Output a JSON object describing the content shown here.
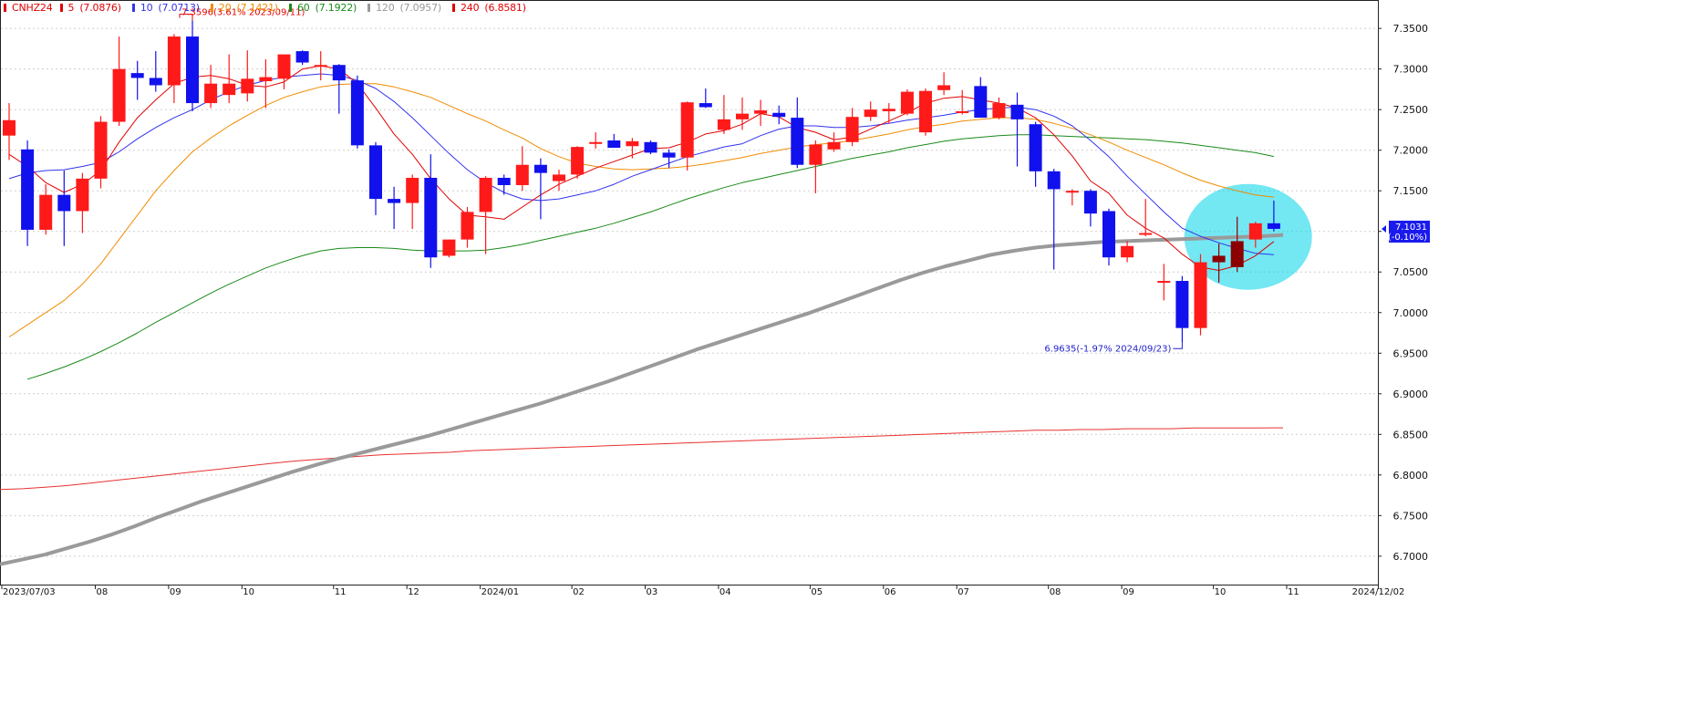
{
  "chart_data": {
    "type": "candlestick",
    "symbol": "CNHZ24",
    "legend": [
      {
        "label": "CNHZ24",
        "value": "",
        "color": "#e00000"
      },
      {
        "label": "5",
        "value": "(7.0876)",
        "color": "#e00000"
      },
      {
        "label": "10",
        "value": "(7.0713)",
        "color": "#3333ee"
      },
      {
        "label": "20",
        "value": "(7.1421)",
        "color": "#f08c00"
      },
      {
        "label": "60",
        "value": "(7.1922)",
        "color": "#1a8a1a"
      },
      {
        "label": "120",
        "value": "(7.0957)",
        "color": "#999999"
      },
      {
        "label": "240",
        "value": "(6.8581)",
        "color": "#e00000"
      }
    ],
    "y_ticks": [
      "7.3500",
      "7.3000",
      "7.2500",
      "7.2000",
      "7.1500",
      "7.1000",
      "7.0500",
      "7.0000",
      "6.9500",
      "6.9000",
      "6.8500",
      "6.8000",
      "6.7500",
      "6.7000"
    ],
    "ylim": [
      6.665,
      7.385
    ],
    "x_labels": [
      "2023/07/03",
      "08",
      "09",
      "10",
      "11",
      "12",
      "2024/01",
      "02",
      "03",
      "04",
      "05",
      "06",
      "07",
      "08",
      "09",
      "10",
      "11",
      "2024/12/02"
    ],
    "x_label_positions": [
      0,
      5,
      9,
      13,
      18,
      22,
      26,
      31,
      35,
      39,
      44,
      48,
      52,
      57,
      61,
      66,
      70,
      75
    ],
    "n_slots": 75,
    "candles": [
      {
        "o": 7.218,
        "h": 7.258,
        "l": 7.188,
        "c": 7.237
      },
      {
        "o": 7.201,
        "h": 7.212,
        "l": 7.082,
        "c": 7.102
      },
      {
        "o": 7.102,
        "h": 7.158,
        "l": 7.096,
        "c": 7.145
      },
      {
        "o": 7.145,
        "h": 7.175,
        "l": 7.082,
        "c": 7.125
      },
      {
        "o": 7.125,
        "h": 7.172,
        "l": 7.098,
        "c": 7.165
      },
      {
        "o": 7.165,
        "h": 7.242,
        "l": 7.153,
        "c": 7.235
      },
      {
        "o": 7.235,
        "h": 7.34,
        "l": 7.23,
        "c": 7.3
      },
      {
        "o": 7.295,
        "h": 7.31,
        "l": 7.262,
        "c": 7.289
      },
      {
        "o": 7.289,
        "h": 7.322,
        "l": 7.272,
        "c": 7.28
      },
      {
        "o": 7.28,
        "h": 7.343,
        "l": 7.258,
        "c": 7.34
      },
      {
        "o": 7.34,
        "h": 7.3596,
        "l": 7.248,
        "c": 7.258
      },
      {
        "o": 7.258,
        "h": 7.305,
        "l": 7.252,
        "c": 7.282
      },
      {
        "o": 7.268,
        "h": 7.318,
        "l": 7.258,
        "c": 7.282
      },
      {
        "o": 7.27,
        "h": 7.323,
        "l": 7.26,
        "c": 7.288
      },
      {
        "o": 7.285,
        "h": 7.312,
        "l": 7.252,
        "c": 7.29
      },
      {
        "o": 7.288,
        "h": 7.316,
        "l": 7.275,
        "c": 7.318
      },
      {
        "o": 7.322,
        "h": 7.323,
        "l": 7.305,
        "c": 7.308
      },
      {
        "o": 7.304,
        "h": 7.322,
        "l": 7.286,
        "c": 7.305
      },
      {
        "o": 7.305,
        "h": 7.306,
        "l": 7.245,
        "c": 7.286
      },
      {
        "o": 7.286,
        "h": 7.292,
        "l": 7.202,
        "c": 7.206
      },
      {
        "o": 7.206,
        "h": 7.21,
        "l": 7.12,
        "c": 7.14
      },
      {
        "o": 7.14,
        "h": 7.155,
        "l": 7.103,
        "c": 7.135
      },
      {
        "o": 7.135,
        "h": 7.17,
        "l": 7.103,
        "c": 7.166
      },
      {
        "o": 7.166,
        "h": 7.195,
        "l": 7.055,
        "c": 7.068
      },
      {
        "o": 7.07,
        "h": 7.09,
        "l": 7.068,
        "c": 7.09
      },
      {
        "o": 7.09,
        "h": 7.13,
        "l": 7.08,
        "c": 7.124
      },
      {
        "o": 7.124,
        "h": 7.168,
        "l": 7.072,
        "c": 7.166
      },
      {
        "o": 7.166,
        "h": 7.17,
        "l": 7.145,
        "c": 7.157
      },
      {
        "o": 7.157,
        "h": 7.205,
        "l": 7.15,
        "c": 7.182
      },
      {
        "o": 7.182,
        "h": 7.19,
        "l": 7.115,
        "c": 7.172
      },
      {
        "o": 7.162,
        "h": 7.176,
        "l": 7.15,
        "c": 7.17
      },
      {
        "o": 7.17,
        "h": 7.205,
        "l": 7.165,
        "c": 7.204
      },
      {
        "o": 7.208,
        "h": 7.222,
        "l": 7.202,
        "c": 7.21
      },
      {
        "o": 7.212,
        "h": 7.22,
        "l": 7.203,
        "c": 7.203
      },
      {
        "o": 7.205,
        "h": 7.215,
        "l": 7.19,
        "c": 7.211
      },
      {
        "o": 7.21,
        "h": 7.212,
        "l": 7.195,
        "c": 7.197
      },
      {
        "o": 7.197,
        "h": 7.201,
        "l": 7.178,
        "c": 7.191
      },
      {
        "o": 7.191,
        "h": 7.26,
        "l": 7.175,
        "c": 7.259
      },
      {
        "o": 7.258,
        "h": 7.276,
        "l": 7.252,
        "c": 7.253
      },
      {
        "o": 7.225,
        "h": 7.268,
        "l": 7.22,
        "c": 7.238
      },
      {
        "o": 7.238,
        "h": 7.265,
        "l": 7.225,
        "c": 7.245
      },
      {
        "o": 7.245,
        "h": 7.262,
        "l": 7.23,
        "c": 7.249
      },
      {
        "o": 7.246,
        "h": 7.255,
        "l": 7.232,
        "c": 7.241
      },
      {
        "o": 7.24,
        "h": 7.265,
        "l": 7.178,
        "c": 7.182
      },
      {
        "o": 7.182,
        "h": 7.212,
        "l": 7.147,
        "c": 7.207
      },
      {
        "o": 7.201,
        "h": 7.222,
        "l": 7.198,
        "c": 7.21
      },
      {
        "o": 7.21,
        "h": 7.252,
        "l": 7.205,
        "c": 7.241
      },
      {
        "o": 7.241,
        "h": 7.26,
        "l": 7.236,
        "c": 7.25
      },
      {
        "o": 7.248,
        "h": 7.258,
        "l": 7.233,
        "c": 7.251
      },
      {
        "o": 7.245,
        "h": 7.275,
        "l": 7.243,
        "c": 7.272
      },
      {
        "o": 7.222,
        "h": 7.276,
        "l": 7.218,
        "c": 7.273
      },
      {
        "o": 7.274,
        "h": 7.296,
        "l": 7.268,
        "c": 7.28
      },
      {
        "o": 7.248,
        "h": 7.274,
        "l": 7.244,
        "c": 7.248
      },
      {
        "o": 7.279,
        "h": 7.29,
        "l": 7.245,
        "c": 7.24
      },
      {
        "o": 7.24,
        "h": 7.265,
        "l": 7.238,
        "c": 7.258
      },
      {
        "o": 7.256,
        "h": 7.271,
        "l": 7.18,
        "c": 7.238
      },
      {
        "o": 7.232,
        "h": 7.235,
        "l": 7.155,
        "c": 7.174
      },
      {
        "o": 7.174,
        "h": 7.177,
        "l": 7.053,
        "c": 7.152
      },
      {
        "o": 7.15,
        "h": 7.152,
        "l": 7.132,
        "c": 7.15
      },
      {
        "o": 7.15,
        "h": 7.152,
        "l": 7.106,
        "c": 7.122
      },
      {
        "o": 7.125,
        "h": 7.128,
        "l": 7.058,
        "c": 7.068
      },
      {
        "o": 7.068,
        "h": 7.088,
        "l": 7.062,
        "c": 7.082
      },
      {
        "o": 7.096,
        "h": 7.14,
        "l": 7.094,
        "c": 7.098
      },
      {
        "o": 7.038,
        "h": 7.06,
        "l": 7.015,
        "c": 7.039
      },
      {
        "o": 7.039,
        "h": 7.045,
        "l": 6.9635,
        "c": 6.981
      },
      {
        "o": 6.981,
        "h": 7.072,
        "l": 6.972,
        "c": 7.062
      },
      {
        "o": 7.062,
        "h": 7.085,
        "l": 7.037,
        "c": 7.07
      },
      {
        "o": 7.056,
        "h": 7.118,
        "l": 7.05,
        "c": 7.088
      },
      {
        "o": 7.09,
        "h": 7.112,
        "l": 7.08,
        "c": 7.11
      },
      {
        "o": 7.11,
        "h": 7.138,
        "l": 7.1,
        "c": 7.1031
      }
    ],
    "ma5": [
      7.195,
      7.18,
      7.16,
      7.148,
      7.158,
      7.175,
      7.21,
      7.24,
      7.262,
      7.282,
      7.29,
      7.292,
      7.288,
      7.28,
      7.278,
      7.284,
      7.3,
      7.304,
      7.3,
      7.282,
      7.252,
      7.22,
      7.195,
      7.165,
      7.14,
      7.12,
      7.118,
      7.115,
      7.13,
      7.145,
      7.158,
      7.168,
      7.178,
      7.186,
      7.194,
      7.202,
      7.203,
      7.21,
      7.22,
      7.224,
      7.232,
      7.245,
      7.241,
      7.228,
      7.222,
      7.213,
      7.216,
      7.226,
      7.236,
      7.246,
      7.258,
      7.264,
      7.266,
      7.262,
      7.258,
      7.252,
      7.24,
      7.219,
      7.193,
      7.162,
      7.147,
      7.12,
      7.104,
      7.092,
      7.072,
      7.056,
      7.052,
      7.058,
      7.07,
      7.0876
    ],
    "ma10": [
      7.165,
      7.172,
      7.175,
      7.176,
      7.18,
      7.185,
      7.198,
      7.214,
      7.228,
      7.24,
      7.25,
      7.262,
      7.272,
      7.28,
      7.286,
      7.29,
      7.292,
      7.294,
      7.292,
      7.286,
      7.276,
      7.26,
      7.24,
      7.218,
      7.196,
      7.176,
      7.16,
      7.148,
      7.14,
      7.138,
      7.14,
      7.145,
      7.15,
      7.158,
      7.168,
      7.176,
      7.184,
      7.192,
      7.198,
      7.204,
      7.208,
      7.218,
      7.226,
      7.23,
      7.23,
      7.228,
      7.228,
      7.23,
      7.233,
      7.237,
      7.24,
      7.243,
      7.247,
      7.25,
      7.252,
      7.253,
      7.25,
      7.242,
      7.23,
      7.212,
      7.192,
      7.168,
      7.146,
      7.124,
      7.104,
      7.094,
      7.086,
      7.079,
      7.073,
      7.0713
    ],
    "ma20": [
      6.97,
      6.985,
      7.0,
      7.015,
      7.035,
      7.06,
      7.09,
      7.12,
      7.15,
      7.175,
      7.198,
      7.215,
      7.23,
      7.243,
      7.255,
      7.265,
      7.272,
      7.278,
      7.281,
      7.282,
      7.282,
      7.278,
      7.272,
      7.265,
      7.255,
      7.245,
      7.236,
      7.225,
      7.215,
      7.202,
      7.192,
      7.184,
      7.18,
      7.177,
      7.176,
      7.177,
      7.178,
      7.18,
      7.183,
      7.187,
      7.191,
      7.196,
      7.2,
      7.204,
      7.207,
      7.209,
      7.212,
      7.216,
      7.22,
      7.225,
      7.229,
      7.232,
      7.236,
      7.238,
      7.24,
      7.24,
      7.238,
      7.233,
      7.227,
      7.219,
      7.21,
      7.2,
      7.191,
      7.182,
      7.172,
      7.163,
      7.156,
      7.15,
      7.145,
      7.1421
    ],
    "ma60": [
      6.918,
      6.925,
      6.933,
      6.942,
      6.952,
      6.963,
      6.975,
      6.988,
      7.0,
      7.012,
      7.024,
      7.035,
      7.045,
      7.055,
      7.063,
      7.07,
      7.076,
      7.079,
      7.08,
      7.08,
      7.079,
      7.077,
      7.076,
      7.076,
      7.076,
      7.077,
      7.08,
      7.084,
      7.089,
      7.094,
      7.099,
      7.104,
      7.11,
      7.117,
      7.124,
      7.132,
      7.14,
      7.147,
      7.154,
      7.16,
      7.165,
      7.17,
      7.175,
      7.18,
      7.185,
      7.19,
      7.194,
      7.198,
      7.203,
      7.207,
      7.211,
      7.214,
      7.216,
      7.218,
      7.219,
      7.219,
      7.218,
      7.217,
      7.216,
      7.215,
      7.214,
      7.213,
      7.211,
      7.209,
      7.206,
      7.203,
      7.2,
      7.197,
      7.1922
    ],
    "ma120": [
      6.69,
      6.696,
      6.702,
      6.71,
      6.718,
      6.727,
      6.737,
      6.748,
      6.758,
      6.768,
      6.777,
      6.786,
      6.795,
      6.804,
      6.812,
      6.82,
      6.827,
      6.834,
      6.841,
      6.848,
      6.856,
      6.864,
      6.872,
      6.88,
      6.888,
      6.897,
      6.906,
      6.915,
      6.925,
      6.935,
      6.945,
      6.955,
      6.964,
      6.973,
      6.982,
      6.991,
      7.0,
      7.01,
      7.02,
      7.03,
      7.04,
      7.049,
      7.057,
      7.064,
      7.071,
      7.076,
      7.08,
      7.083,
      7.085,
      7.087,
      7.088,
      7.089,
      7.09,
      7.091,
      7.092,
      7.093,
      7.094,
      7.0957
    ],
    "ma240": [
      6.782,
      6.783,
      6.785,
      6.787,
      6.79,
      6.793,
      6.796,
      6.799,
      6.802,
      6.805,
      6.808,
      6.811,
      6.814,
      6.817,
      6.819,
      6.821,
      6.823,
      6.825,
      6.826,
      6.827,
      6.828,
      6.83,
      6.831,
      6.832,
      6.833,
      6.834,
      6.835,
      6.836,
      6.837,
      6.838,
      6.839,
      6.84,
      6.841,
      6.842,
      6.843,
      6.844,
      6.845,
      6.846,
      6.847,
      6.848,
      6.849,
      6.85,
      6.851,
      6.852,
      6.853,
      6.854,
      6.855,
      6.855,
      6.856,
      6.856,
      6.857,
      6.857,
      6.857,
      6.858,
      6.858,
      6.858,
      6.858,
      6.8581
    ],
    "annotations": [
      {
        "text": "7.3596(3.61% 2023/09/11)",
        "candle": 10,
        "value": 7.3596,
        "color": "#e00000",
        "side": "high"
      },
      {
        "text": "6.9635(-1.97% 2024/09/23)",
        "candle": 64,
        "value": 6.9635,
        "color": "#2222cc",
        "side": "low"
      }
    ],
    "last_price": {
      "value": "7.1031",
      "change": "(-0.10%)",
      "price": 7.1031,
      "bg": "#1a1aee"
    },
    "highlight": {
      "center_candle": 67,
      "center_value": 7.1,
      "color": "#00d4e8"
    },
    "colors": {
      "up": "#ff1a1a",
      "down": "#1111ee",
      "up_dark": "#8b0000",
      "grid": "#cfcfcf",
      "axis": "#222222"
    }
  }
}
